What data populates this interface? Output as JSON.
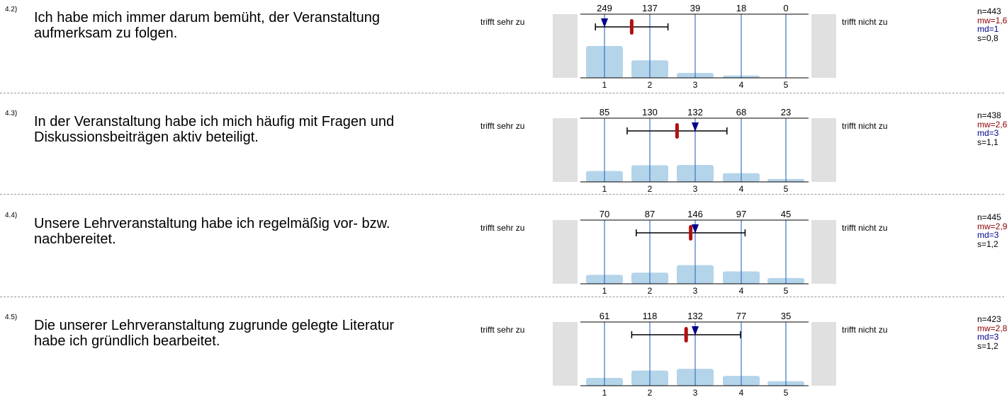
{
  "scale": {
    "left_label": "trifft sehr zu",
    "right_label": "trifft nicht zu",
    "ticks": [
      "1",
      "2",
      "3",
      "4",
      "5"
    ]
  },
  "colors": {
    "bar": "#b4d4ea",
    "gridline": "#3a74c0",
    "side_box": "#e0e0e0",
    "mean_marker": "#b01010",
    "median_marker": "#00008b",
    "mw_text": "#8b0000",
    "md_text": "#00008b"
  },
  "items": [
    {
      "number": "4.2)",
      "text": "Ich habe mich immer darum bemüht, der Veranstaltung aufmerksam zu folgen.",
      "stats": {
        "n": "n=443",
        "mw": "mw=1,6",
        "md": "md=1",
        "s": "s=0,8"
      }
    },
    {
      "number": "4.3)",
      "text": "In der Veranstaltung habe ich mich häufig mit Fragen und Diskussionsbeiträgen aktiv beteiligt.",
      "stats": {
        "n": "n=438",
        "mw": "mw=2,6",
        "md": "md=3",
        "s": "s=1,1"
      }
    },
    {
      "number": "4.4)",
      "text": "Unsere Lehrveranstaltung habe ich regelmäßig vor- bzw. nachbereitet.",
      "stats": {
        "n": "n=445",
        "mw": "mw=2,9",
        "md": "md=3",
        "s": "s=1,2"
      }
    },
    {
      "number": "4.5)",
      "text": "Die unserer Lehrveranstaltung zugrunde gelegte Literatur habe ich gründlich bearbeitet.",
      "stats": {
        "n": "n=423",
        "mw": "mw=2,8",
        "md": "md=3",
        "s": "s=1,2"
      }
    }
  ],
  "chart_data": [
    {
      "type": "bar",
      "categories": [
        "1",
        "2",
        "3",
        "4",
        "5"
      ],
      "values": [
        249,
        137,
        39,
        18,
        0
      ],
      "mean": 1.6,
      "median": 1,
      "sd": 0.8,
      "interval": [
        0.8,
        2.4
      ],
      "ylim": [
        0,
        249
      ]
    },
    {
      "type": "bar",
      "categories": [
        "1",
        "2",
        "3",
        "4",
        "5"
      ],
      "values": [
        85,
        130,
        132,
        68,
        23
      ],
      "mean": 2.6,
      "median": 3,
      "sd": 1.1,
      "interval": [
        1.5,
        3.7
      ],
      "ylim": [
        0,
        249
      ]
    },
    {
      "type": "bar",
      "categories": [
        "1",
        "2",
        "3",
        "4",
        "5"
      ],
      "values": [
        70,
        87,
        146,
        97,
        45
      ],
      "mean": 2.9,
      "median": 3,
      "sd": 1.2,
      "interval": [
        1.7,
        4.1
      ],
      "ylim": [
        0,
        249
      ]
    },
    {
      "type": "bar",
      "categories": [
        "1",
        "2",
        "3",
        "4",
        "5"
      ],
      "values": [
        61,
        118,
        132,
        77,
        35
      ],
      "mean": 2.8,
      "median": 3,
      "sd": 1.2,
      "interval": [
        1.6,
        4.0
      ],
      "ylim": [
        0,
        249
      ]
    }
  ]
}
